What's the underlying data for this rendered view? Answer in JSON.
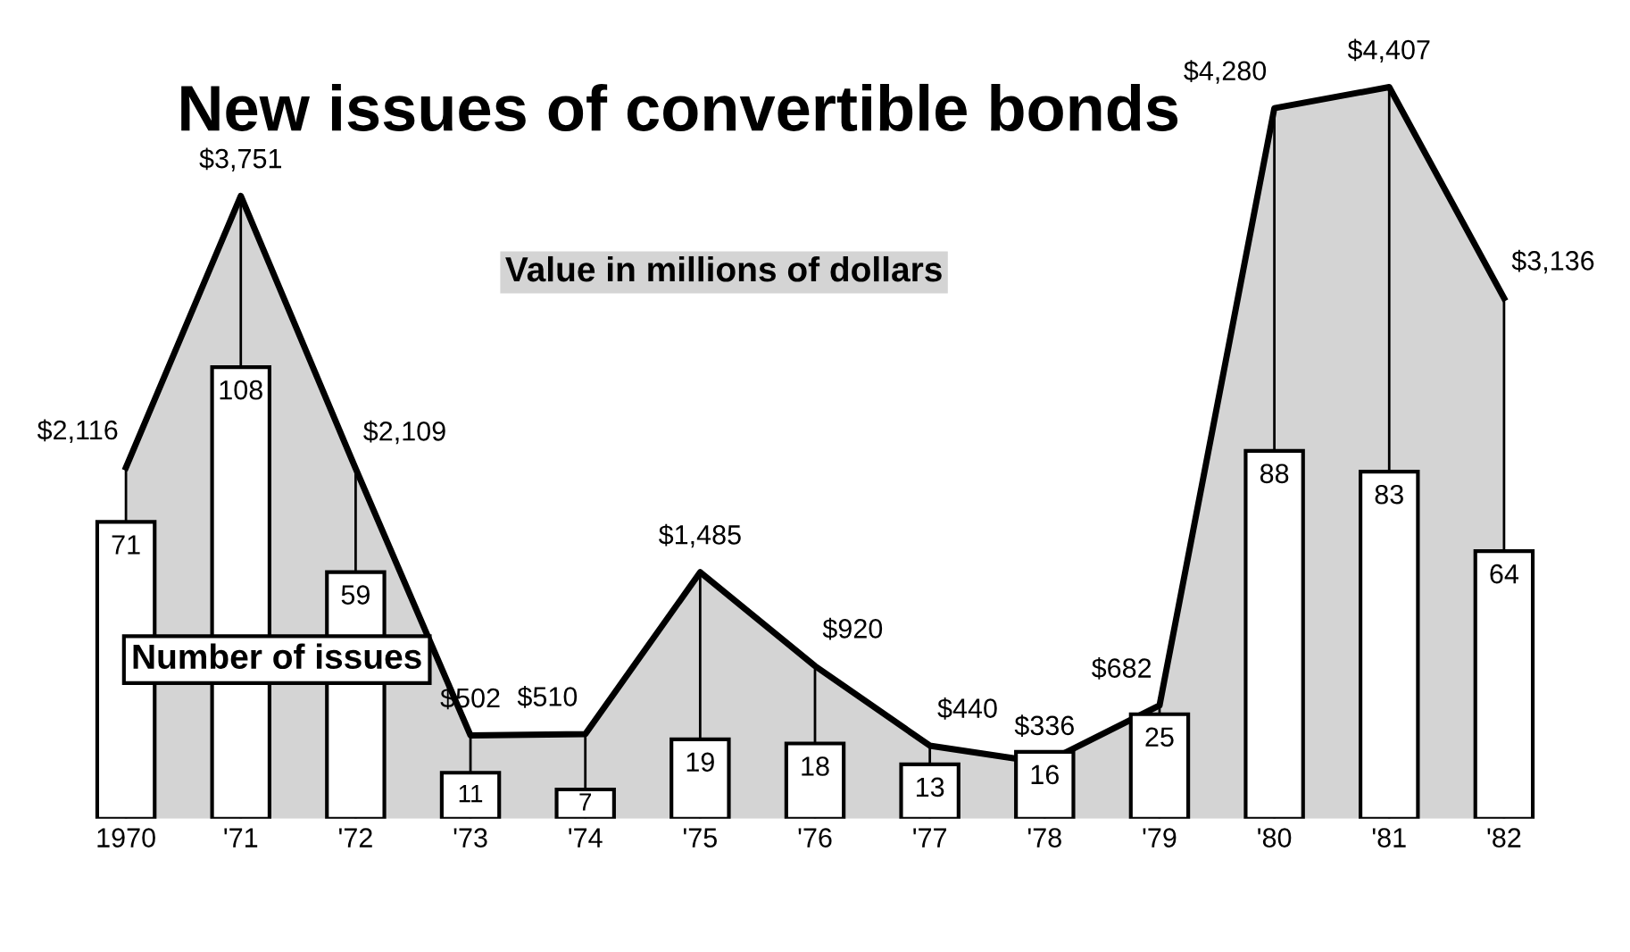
{
  "chart_data": {
    "type": "area",
    "title": "New issues of convertible bonds",
    "categories": [
      "1970",
      "'71",
      "'72",
      "'73",
      "'74",
      "'75",
      "'76",
      "'77",
      "'78",
      "'79",
      "'80",
      "'81",
      "'82"
    ],
    "series": [
      {
        "name": "Value in millions of dollars",
        "color": "#d4d4d4",
        "values": [
          2116,
          3751,
          2109,
          502,
          510,
          1485,
          920,
          440,
          336,
          682,
          4280,
          4407,
          3136
        ],
        "value_labels": [
          "$2,116",
          "$3,751",
          "$2,109",
          "$502",
          "$510",
          "$1,485",
          "$920",
          "$440",
          "$336",
          "$682",
          "$4,280",
          "$4,407",
          "$3,136"
        ]
      },
      {
        "name": "Number of issues",
        "type": "bar",
        "axis": "y2",
        "color": "#ffffff",
        "values": [
          71,
          108,
          59,
          11,
          7,
          19,
          18,
          13,
          16,
          25,
          88,
          83,
          64
        ]
      }
    ],
    "tick_labels": [
      "x"
    ],
    "data_labels": true,
    "legend": false,
    "grid": "x"
  }
}
